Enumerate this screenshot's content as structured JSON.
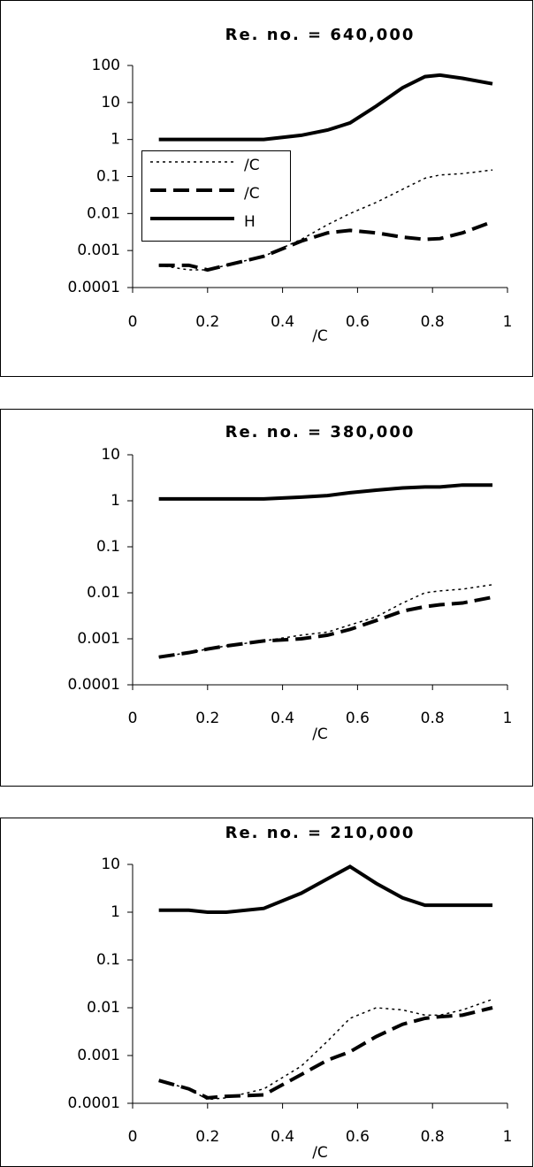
{
  "chart_data": [
    {
      "type": "line",
      "title": "Re. no. = 640,000",
      "x_label": "/C",
      "log_y": true,
      "x": [
        0.07,
        0.15,
        0.2,
        0.25,
        0.35,
        0.45,
        0.52,
        0.58,
        0.65,
        0.72,
        0.78,
        0.82,
        0.88,
        0.96
      ],
      "series": [
        {
          "name": "/C",
          "color": "#000000",
          "style": "dotted",
          "values": [
            0.0004,
            0.0003,
            0.0003,
            0.0004,
            0.0007,
            0.002,
            0.005,
            0.01,
            0.02,
            0.045,
            0.09,
            0.11,
            0.12,
            0.15
          ]
        },
        {
          "name": "/C",
          "color": "#000000",
          "style": "dashed",
          "values": [
            0.0004,
            0.0004,
            0.0003,
            0.0004,
            0.0007,
            0.0018,
            0.003,
            0.0035,
            0.003,
            0.0023,
            0.002,
            0.0021,
            0.003,
            0.006
          ]
        },
        {
          "name": "H",
          "color": "#000000",
          "style": "solid",
          "values": [
            1,
            1,
            1,
            1,
            1,
            1.3,
            1.8,
            2.8,
            8,
            25,
            50,
            55,
            45,
            32
          ]
        }
      ],
      "xlim": [
        0,
        1
      ],
      "xticks": [
        0,
        0.2,
        0.4,
        0.6,
        0.8,
        1
      ],
      "ylim": [
        0.0001,
        100
      ],
      "yticks": [
        0.0001,
        0.001,
        0.01,
        0.1,
        1,
        10,
        100
      ],
      "legend": "upper-left"
    },
    {
      "type": "line",
      "title": "Re. no. = 380,000",
      "x_label": "/C",
      "log_y": true,
      "x": [
        0.07,
        0.15,
        0.2,
        0.25,
        0.35,
        0.45,
        0.52,
        0.58,
        0.65,
        0.72,
        0.78,
        0.82,
        0.88,
        0.96
      ],
      "series": [
        {
          "color": "#000000",
          "style": "dotted",
          "values": [
            0.0004,
            0.0005,
            0.0006,
            0.0007,
            0.0009,
            0.0012,
            0.0014,
            0.002,
            0.003,
            0.006,
            0.01,
            0.011,
            0.012,
            0.015
          ]
        },
        {
          "color": "#000000",
          "style": "dashed",
          "values": [
            0.0004,
            0.0005,
            0.0006,
            0.0007,
            0.0009,
            0.001,
            0.0012,
            0.0016,
            0.0025,
            0.004,
            0.005,
            0.0055,
            0.006,
            0.008
          ]
        },
        {
          "color": "#000000",
          "style": "solid",
          "values": [
            1.1,
            1.1,
            1.1,
            1.1,
            1.1,
            1.2,
            1.3,
            1.5,
            1.7,
            1.9,
            2,
            2,
            2.2,
            2.2
          ]
        }
      ],
      "xlim": [
        0,
        1
      ],
      "xticks": [
        0,
        0.2,
        0.4,
        0.6,
        0.8,
        1
      ],
      "ylim": [
        0.0001,
        10
      ],
      "yticks": [
        0.0001,
        0.001,
        0.01,
        0.1,
        1,
        10
      ]
    },
    {
      "type": "line",
      "title": "Re. no. = 210,000",
      "x_label": "/C",
      "log_y": true,
      "x": [
        0.07,
        0.15,
        0.2,
        0.25,
        0.35,
        0.45,
        0.52,
        0.58,
        0.65,
        0.72,
        0.78,
        0.82,
        0.88,
        0.96
      ],
      "series": [
        {
          "color": "#000000",
          "style": "dotted",
          "values": [
            0.0003,
            0.0002,
            0.00012,
            0.00013,
            0.0002,
            0.0006,
            0.002,
            0.006,
            0.01,
            0.009,
            0.007,
            0.007,
            0.009,
            0.015
          ]
        },
        {
          "color": "#000000",
          "style": "dashed",
          "values": [
            0.0003,
            0.0002,
            0.00013,
            0.00014,
            0.00015,
            0.0004,
            0.0008,
            0.0012,
            0.0025,
            0.0045,
            0.006,
            0.0065,
            0.007,
            0.01
          ]
        },
        {
          "color": "#000000",
          "style": "solid",
          "values": [
            1.1,
            1.1,
            1,
            1,
            1.2,
            2.5,
            5,
            9,
            4,
            2,
            1.4,
            1.4,
            1.4,
            1.4
          ]
        }
      ],
      "xlim": [
        0,
        1
      ],
      "xticks": [
        0,
        0.2,
        0.4,
        0.6,
        0.8,
        1
      ],
      "ylim": [
        0.0001,
        10
      ],
      "yticks": [
        0.0001,
        0.001,
        0.01,
        0.1,
        1,
        10
      ]
    }
  ]
}
